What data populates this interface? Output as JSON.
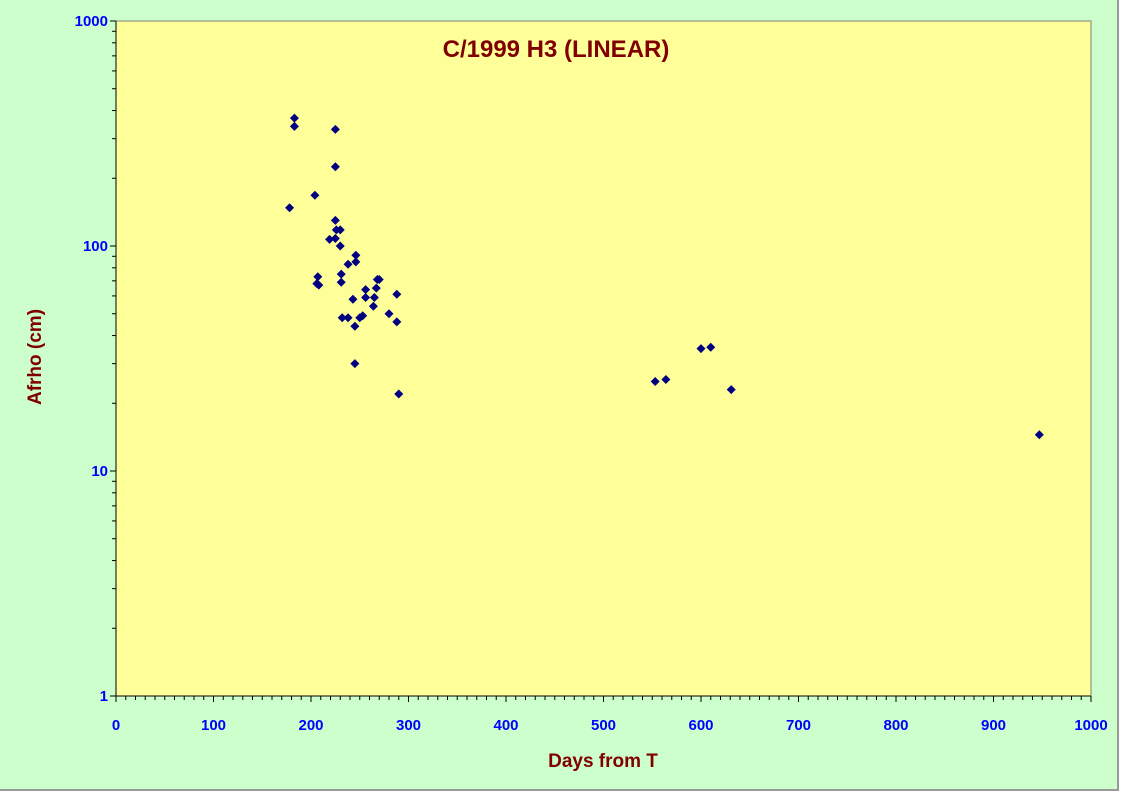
{
  "chart_data": {
    "type": "scatter",
    "title": "C/1999 H3 (LINEAR)",
    "xlabel": "Days from T",
    "ylabel": "Afrho (cm)",
    "xlim": [
      0,
      1000
    ],
    "ylim": [
      1,
      1000
    ],
    "yscale": "log",
    "x_ticks": [
      0,
      100,
      200,
      300,
      400,
      500,
      600,
      700,
      800,
      900,
      1000
    ],
    "x_tick_labels": [
      "0",
      "100",
      "200",
      "300",
      "400",
      "500",
      "600",
      "700",
      "800",
      "900",
      "1000"
    ],
    "y_ticks": [
      1,
      10,
      100,
      1000
    ],
    "y_tick_labels": [
      "1",
      "10",
      "100",
      "1000"
    ],
    "grid": false,
    "legend": "none",
    "colors": {
      "frame_bg": "#ccffcc",
      "plot_bg": "#ffff99",
      "marker": "#000080",
      "tick_label": "#0000ff",
      "title": "#800000"
    },
    "series": [
      {
        "marker": "diamond",
        "points": [
          [
            178,
            148
          ],
          [
            183,
            370
          ],
          [
            183,
            340
          ],
          [
            204,
            168
          ],
          [
            206,
            68
          ],
          [
            207,
            73
          ],
          [
            208,
            67
          ],
          [
            219,
            107
          ],
          [
            225,
            330
          ],
          [
            225,
            225
          ],
          [
            225,
            130
          ],
          [
            225,
            108
          ],
          [
            226,
            118
          ],
          [
            230,
            100
          ],
          [
            230,
            118
          ],
          [
            231,
            75
          ],
          [
            231,
            69
          ],
          [
            232,
            48
          ],
          [
            238,
            83
          ],
          [
            238,
            48
          ],
          [
            243,
            58
          ],
          [
            245,
            44
          ],
          [
            245,
            30
          ],
          [
            246,
            91
          ],
          [
            246,
            85
          ],
          [
            250,
            48
          ],
          [
            253,
            49
          ],
          [
            256,
            64
          ],
          [
            256,
            59
          ],
          [
            264,
            54
          ],
          [
            265,
            59
          ],
          [
            267,
            65
          ],
          [
            268,
            71
          ],
          [
            270,
            71
          ],
          [
            280,
            50
          ],
          [
            288,
            61
          ],
          [
            288,
            46
          ],
          [
            290,
            22
          ],
          [
            553,
            25
          ],
          [
            564,
            25.5
          ],
          [
            600,
            35
          ],
          [
            610,
            35.5
          ],
          [
            631,
            23
          ],
          [
            947,
            14.5
          ]
        ]
      }
    ]
  }
}
